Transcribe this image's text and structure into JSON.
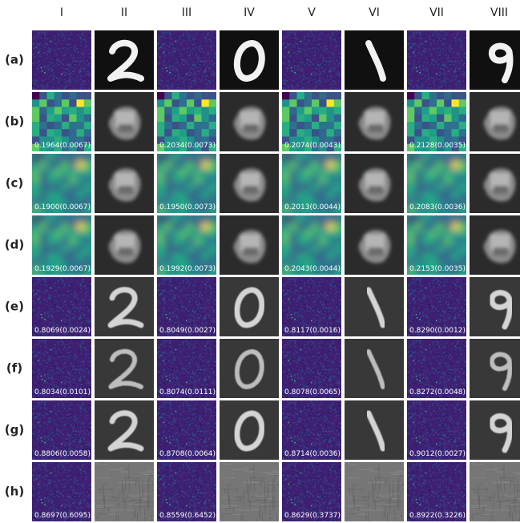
{
  "columns": [
    "I",
    "II",
    "III",
    "IV",
    "V",
    "VI",
    "VII",
    "VIII"
  ],
  "rows": [
    {
      "label": "(a)",
      "values": []
    },
    {
      "label": "(b)",
      "values": [
        "0.1964(0.0067)",
        "0.2034(0.0073)",
        "0.2074(0.0043)",
        "0.2128(0.0035)"
      ]
    },
    {
      "label": "(c)",
      "values": [
        "0.1900(0.0067)",
        "0.1950(0.0073)",
        "0.2013(0.0044)",
        "0.2083(0.0036)"
      ]
    },
    {
      "label": "(d)",
      "values": [
        "0.1929(0.0067)",
        "0.1992(0.0073)",
        "0.2043(0.0044)",
        "0.2153(0.0035)"
      ]
    },
    {
      "label": "(e)",
      "values": [
        "0.8069(0.0024)",
        "0.8049(0.0027)",
        "0.8117(0.0016)",
        "0.8290(0.0012)"
      ]
    },
    {
      "label": "(f)",
      "values": [
        "0.8034(0.0101)",
        "0.8074(0.0111)",
        "0.8078(0.0065)",
        "0.8272(0.0048)"
      ]
    },
    {
      "label": "(g)",
      "values": [
        "0.8806(0.0058)",
        "0.8708(0.0064)",
        "0.8714(0.0036)",
        "0.9012(0.0027)"
      ]
    },
    {
      "label": "(h)",
      "values": [
        "0.8697(0.6095)",
        "0.8559(0.6452)",
        "0.8629(0.3737)",
        "0.8922(0.3226)"
      ]
    }
  ]
}
